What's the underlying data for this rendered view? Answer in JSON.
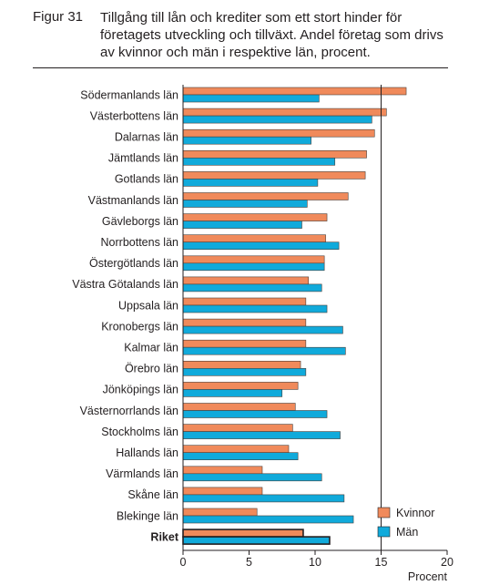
{
  "figure_label": "Figur 31",
  "title": "Tillgång till lån och krediter som ett stort hinder för företagets utveckling och tillväxt. Andel företag som drivs av kvinnor och män i respektive län, procent.",
  "colors": {
    "kvinnor": "#f08a5b",
    "man": "#10aadb",
    "axis": "#231f20"
  },
  "chart_data": {
    "type": "bar",
    "orientation": "horizontal",
    "title": "Tillgång till lån och krediter som ett stort hinder för företagets utveckling och tillväxt. Andel företag som drivs av kvinnor och män i respektive län, procent.",
    "xlabel": "Procent",
    "ylabel": "",
    "xlim": [
      0,
      20
    ],
    "xticks": [
      0,
      5,
      10,
      15,
      20
    ],
    "reference_line": 15,
    "legend_position": "bottom-right",
    "highlighted_category": "Riket",
    "categories": [
      "Södermanlands län",
      "Västerbottens län",
      "Dalarnas län",
      "Jämtlands län",
      "Gotlands län",
      "Västmanlands län",
      "Gävleborgs län",
      "Norrbottens län",
      "Östergötlands län",
      "Västra Götalands län",
      "Uppsala län",
      "Kronobergs län",
      "Kalmar län",
      "Örebro län",
      "Jönköpings län",
      "Västernorrlands län",
      "Stockholms län",
      "Hallands län",
      "Värmlands län",
      "Skåne län",
      "Blekinge län",
      "Riket"
    ],
    "series": [
      {
        "name": "Kvinnor",
        "values": [
          16.9,
          15.4,
          14.5,
          13.9,
          13.8,
          12.5,
          10.9,
          10.8,
          10.7,
          9.5,
          9.3,
          9.3,
          9.3,
          8.9,
          8.7,
          8.5,
          8.3,
          8.0,
          6.0,
          6.0,
          5.6,
          9.1
        ]
      },
      {
        "name": "Män",
        "values": [
          10.3,
          14.3,
          9.7,
          11.5,
          10.2,
          9.4,
          9.0,
          11.8,
          10.7,
          10.5,
          10.9,
          12.1,
          12.3,
          9.3,
          7.5,
          10.9,
          11.9,
          8.7,
          10.5,
          12.2,
          12.9,
          11.1
        ]
      }
    ]
  }
}
